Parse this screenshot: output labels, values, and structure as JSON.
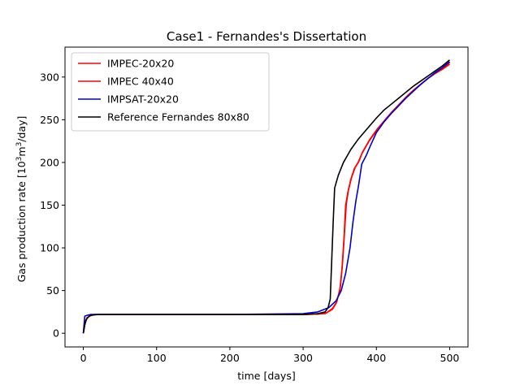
{
  "chart_data": {
    "type": "line",
    "title": "Case1 - Fernandes's Dissertation",
    "xlabel": "time [days]",
    "ylabel_parts": {
      "pre": "Gas production rate [10",
      "sup1": "3",
      "mid": "m",
      "sup2": "3",
      "post": "/day]"
    },
    "xlim": [
      -25,
      525
    ],
    "ylim": [
      -16,
      335
    ],
    "x_ticks": [
      0,
      100,
      200,
      300,
      400,
      500
    ],
    "y_ticks": [
      0,
      50,
      100,
      150,
      200,
      250,
      300
    ],
    "grid": false,
    "legend_position": "top-left",
    "series": [
      {
        "name": "IMPEC-20x20",
        "color": "#ff0000",
        "points": [
          [
            0,
            0
          ],
          [
            3,
            15
          ],
          [
            8,
            20
          ],
          [
            15,
            22
          ],
          [
            100,
            22
          ],
          [
            200,
            22
          ],
          [
            300,
            22
          ],
          [
            320,
            22.5
          ],
          [
            330,
            23
          ],
          [
            340,
            28
          ],
          [
            345,
            35
          ],
          [
            350,
            50
          ],
          [
            353,
            75
          ],
          [
            356,
            115
          ],
          [
            358,
            150
          ],
          [
            361,
            165
          ],
          [
            365,
            180
          ],
          [
            370,
            193
          ],
          [
            375,
            200
          ],
          [
            380,
            210
          ],
          [
            390,
            225
          ],
          [
            400,
            237
          ],
          [
            410,
            248
          ],
          [
            420,
            258
          ],
          [
            430,
            267
          ],
          [
            440,
            276
          ],
          [
            450,
            284
          ],
          [
            460,
            291
          ],
          [
            470,
            298
          ],
          [
            480,
            304
          ],
          [
            490,
            309
          ],
          [
            500,
            315
          ]
        ]
      },
      {
        "name": "IMPEC 40x40",
        "color": "#ff0000",
        "points": [
          [
            0,
            0
          ],
          [
            3,
            15
          ],
          [
            8,
            20
          ],
          [
            15,
            22
          ],
          [
            100,
            22
          ],
          [
            200,
            22
          ],
          [
            300,
            22
          ],
          [
            320,
            22.5
          ],
          [
            332,
            24
          ],
          [
            340,
            29
          ],
          [
            346,
            37
          ],
          [
            351,
            55
          ],
          [
            354,
            85
          ],
          [
            357,
            125
          ],
          [
            359,
            152
          ],
          [
            362,
            168
          ],
          [
            366,
            182
          ],
          [
            371,
            194
          ],
          [
            376,
            201
          ],
          [
            381,
            212
          ],
          [
            391,
            227
          ],
          [
            401,
            239
          ],
          [
            411,
            249
          ],
          [
            421,
            259
          ],
          [
            431,
            268
          ],
          [
            441,
            277
          ],
          [
            451,
            285
          ],
          [
            461,
            292
          ],
          [
            471,
            299
          ],
          [
            481,
            305
          ],
          [
            491,
            310
          ],
          [
            500,
            317
          ]
        ]
      },
      {
        "name": "IMPSAT-20x20",
        "color": "#0000cc",
        "points": [
          [
            0,
            0
          ],
          [
            2,
            20
          ],
          [
            5,
            21
          ],
          [
            10,
            22
          ],
          [
            100,
            22
          ],
          [
            200,
            22
          ],
          [
            300,
            23
          ],
          [
            320,
            25
          ],
          [
            335,
            30
          ],
          [
            345,
            38
          ],
          [
            352,
            50
          ],
          [
            358,
            70
          ],
          [
            364,
            100
          ],
          [
            368,
            130
          ],
          [
            372,
            155
          ],
          [
            376,
            175
          ],
          [
            380,
            198
          ],
          [
            386,
            208
          ],
          [
            392,
            220
          ],
          [
            400,
            235
          ],
          [
            410,
            247
          ],
          [
            420,
            257
          ],
          [
            430,
            266
          ],
          [
            440,
            275
          ],
          [
            450,
            283
          ],
          [
            460,
            291
          ],
          [
            470,
            298
          ],
          [
            480,
            305
          ],
          [
            490,
            311
          ],
          [
            500,
            318
          ]
        ]
      },
      {
        "name": "Reference Fernandes 80x80",
        "color": "#000000",
        "points": [
          [
            0,
            0
          ],
          [
            2,
            10
          ],
          [
            5,
            18
          ],
          [
            10,
            21
          ],
          [
            20,
            22
          ],
          [
            100,
            22
          ],
          [
            200,
            22
          ],
          [
            300,
            22
          ],
          [
            320,
            23
          ],
          [
            330,
            25
          ],
          [
            334,
            30
          ],
          [
            337,
            40
          ],
          [
            339,
            85
          ],
          [
            341,
            130
          ],
          [
            343,
            170
          ],
          [
            348,
            185
          ],
          [
            355,
            200
          ],
          [
            365,
            215
          ],
          [
            375,
            227
          ],
          [
            390,
            242
          ],
          [
            400,
            252
          ],
          [
            410,
            261
          ],
          [
            420,
            268
          ],
          [
            430,
            275
          ],
          [
            440,
            282
          ],
          [
            450,
            289
          ],
          [
            460,
            295
          ],
          [
            470,
            301
          ],
          [
            480,
            307
          ],
          [
            490,
            313
          ],
          [
            500,
            320
          ]
        ]
      }
    ]
  }
}
